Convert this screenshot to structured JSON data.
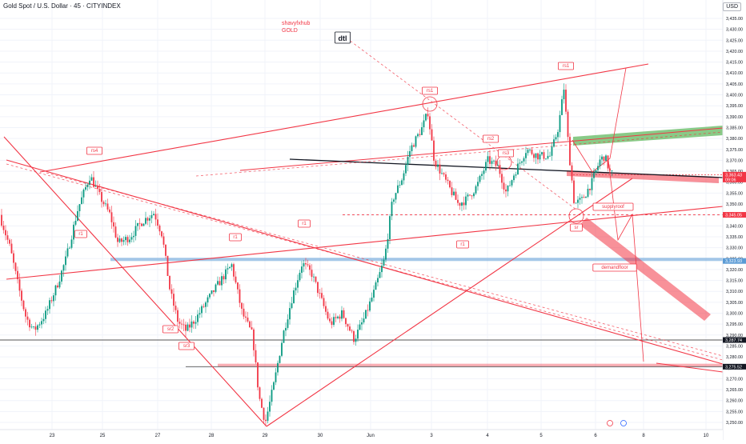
{
  "header": {
    "symbol_title": "Gold Spot / U.S. Dollar · 45 · CITYINDEX",
    "currency": "USD"
  },
  "colors": {
    "up": "#089981",
    "down": "#f23645",
    "drawing": "#f23645",
    "grid": "#f0f3fa",
    "axis_text": "#131722"
  },
  "chart_data": {
    "type": "candlestick",
    "title": "Gold Spot / U.S. Dollar · 45 · CITYINDEX",
    "ylabel": "USD",
    "ylim": [
      3245,
      3438
    ],
    "y_ticks": [
      "3,250.00",
      "3,255.00",
      "3,260.00",
      "3,265.00",
      "3,270.00",
      "3,275.00",
      "3,280.00",
      "3,285.00",
      "3,290.00",
      "3,295.00",
      "3,300.00",
      "3,305.00",
      "3,310.00",
      "3,315.00",
      "3,320.00",
      "3,325.00",
      "3,330.00",
      "3,335.00",
      "3,340.00",
      "3,345.00",
      "3,350.00",
      "3,355.00",
      "3,360.00",
      "3,365.00",
      "3,370.00",
      "3,375.00",
      "3,380.00",
      "3,385.00",
      "3,390.00",
      "3,395.00",
      "3,400.00",
      "3,405.00",
      "3,410.00",
      "3,415.00",
      "3,420.00",
      "3,425.00",
      "3,430.00",
      "3,435.00"
    ],
    "x_ticks": [
      "23",
      "25",
      "27",
      "28",
      "29",
      "30",
      "Jun",
      "3",
      "4",
      "5",
      "6",
      "8",
      "10"
    ],
    "price_tags": [
      {
        "label": "3,363.43",
        "sub": "09:06",
        "price": 3363.43,
        "color": "#f23645"
      },
      {
        "label": "3,345.05",
        "price": 3345.05,
        "color": "#f23645"
      },
      {
        "label": "3,323.93",
        "price": 3323.93,
        "color": "#5b9bd5"
      },
      {
        "label": "3,287.74",
        "price": 3287.74,
        "color": "#131722"
      },
      {
        "label": "3,275.52",
        "price": 3275.52,
        "color": "#131722"
      }
    ],
    "annotations": [
      {
        "text": "shavyfxhub",
        "kind": "plain"
      },
      {
        "text": "GOLD",
        "kind": "plain"
      },
      {
        "text": "dtl",
        "kind": "box-dark"
      },
      {
        "text": "rs1",
        "kind": "box"
      },
      {
        "text": "rs1",
        "kind": "box"
      },
      {
        "text": "rs2",
        "kind": "box"
      },
      {
        "text": "rs3",
        "kind": "box"
      },
      {
        "text": "rs4",
        "kind": "box"
      },
      {
        "text": "r1",
        "kind": "box"
      },
      {
        "text": "r1",
        "kind": "box"
      },
      {
        "text": "r1",
        "kind": "box"
      },
      {
        "text": "r1",
        "kind": "box"
      },
      {
        "text": "sr2",
        "kind": "box"
      },
      {
        "text": "sr3",
        "kind": "box"
      },
      {
        "text": "sr",
        "kind": "box"
      },
      {
        "text": "supplyroof",
        "kind": "box"
      },
      {
        "text": "demandfloor",
        "kind": "box"
      }
    ]
  }
}
